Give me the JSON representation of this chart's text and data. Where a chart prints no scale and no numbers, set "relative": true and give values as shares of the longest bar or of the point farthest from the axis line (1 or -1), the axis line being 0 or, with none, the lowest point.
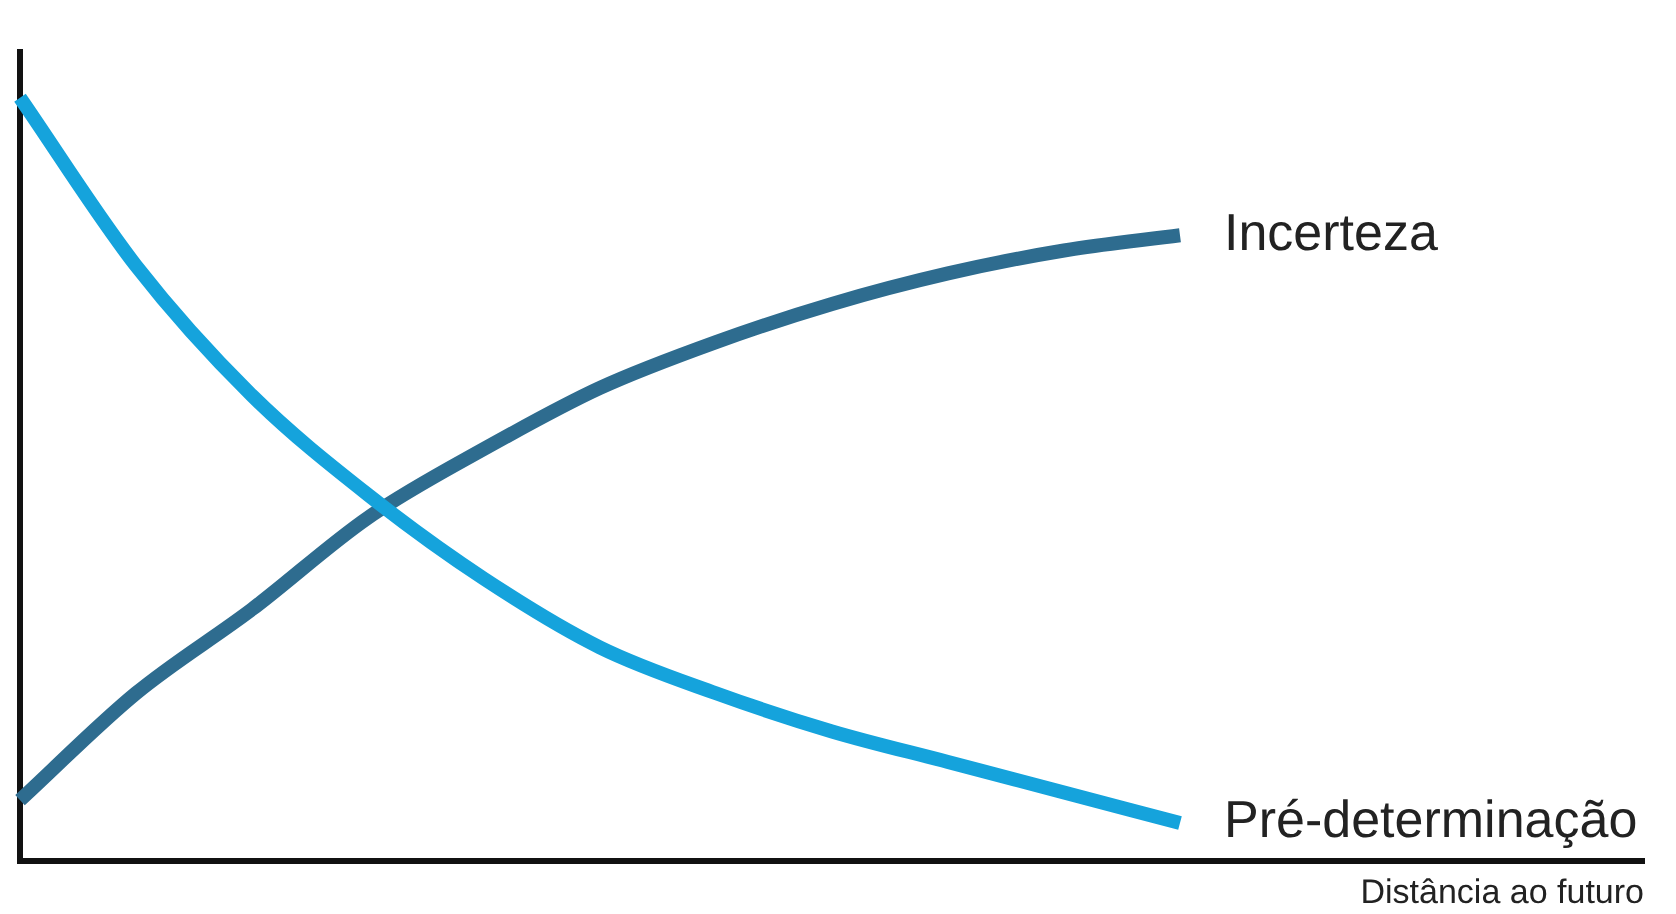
{
  "chart_data": {
    "type": "line",
    "relative": true,
    "xlabel": "Distância ao futuro",
    "categories": [
      null,
      null,
      null,
      null,
      null,
      null,
      null,
      null,
      null,
      null,
      null,
      null,
      null,
      null,
      null
    ],
    "series": [
      {
        "name": "Pré-determinação",
        "color": "#15a3dc",
        "values": [
          1,
          0.78,
          0.61,
          0.48,
          0.37,
          0.28,
          0.22,
          0.17,
          0.13,
          0.09,
          0.05,
          null,
          null,
          null,
          null
        ]
      },
      {
        "name": "Incerteza",
        "color": "#2e6c8f",
        "values": [
          0.08,
          0.22,
          0.33,
          0.45,
          0.54,
          0.62,
          0.68,
          0.73,
          0.77,
          0.8,
          0.82,
          null,
          null,
          null,
          null
        ]
      }
    ],
    "legend": false,
    "grid": false,
    "marker": "none",
    "line_style": "solid"
  }
}
